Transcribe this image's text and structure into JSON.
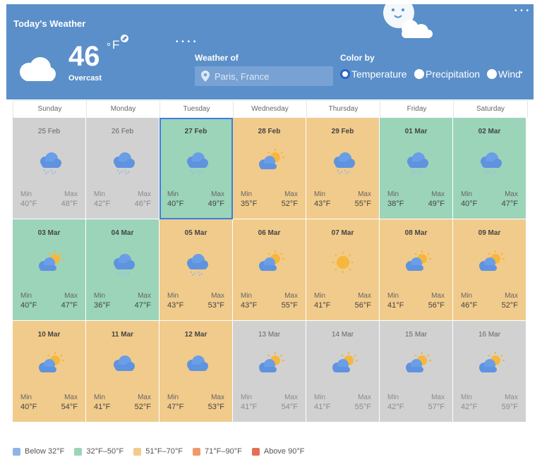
{
  "header": {
    "title": "Today's Weather",
    "temperature": "46",
    "degree": "°",
    "unit": "F",
    "condition": "Overcast",
    "weather_of_label": "Weather of",
    "location_value": "Paris, France",
    "color_by_label": "Color by",
    "color_by_options": [
      "Temperature",
      "Precipitation",
      "Wind"
    ],
    "color_by_selected": "Temperature"
  },
  "days": [
    "Sunday",
    "Monday",
    "Tuesday",
    "Wednesday",
    "Thursday",
    "Friday",
    "Saturday"
  ],
  "labels": {
    "min": "Min",
    "max": "Max"
  },
  "weeks": [
    [
      {
        "date": "25 Feb",
        "min": "40°F",
        "max": "48°F",
        "color": "gray",
        "icon": "cloud-rain-icon"
      },
      {
        "date": "26 Feb",
        "min": "42°F",
        "max": "46°F",
        "color": "gray",
        "icon": "cloud-rain-icon"
      },
      {
        "date": "27 Feb",
        "min": "40°F",
        "max": "49°F",
        "color": "green",
        "icon": "cloud-rain-icon",
        "selected": true
      },
      {
        "date": "28 Feb",
        "min": "35°F",
        "max": "52°F",
        "color": "yellow",
        "icon": "partly-cloudy-icon"
      },
      {
        "date": "29 Feb",
        "min": "43°F",
        "max": "55°F",
        "color": "yellow",
        "icon": "cloud-rain-icon"
      },
      {
        "date": "01 Mar",
        "min": "38°F",
        "max": "49°F",
        "color": "green",
        "icon": "cloud-rain-icon"
      },
      {
        "date": "02 Mar",
        "min": "40°F",
        "max": "47°F",
        "color": "green",
        "icon": "cloud-rain-icon"
      }
    ],
    [
      {
        "date": "03 Mar",
        "min": "40°F",
        "max": "47°F",
        "color": "green",
        "icon": "partly-cloudy-icon"
      },
      {
        "date": "04 Mar",
        "min": "36°F",
        "max": "47°F",
        "color": "green",
        "icon": "cloud-rain-icon"
      },
      {
        "date": "05 Mar",
        "min": "43°F",
        "max": "53°F",
        "color": "yellow",
        "icon": "cloud-rain-icon"
      },
      {
        "date": "06 Mar",
        "min": "43°F",
        "max": "55°F",
        "color": "yellow",
        "icon": "partly-cloudy-icon"
      },
      {
        "date": "07 Mar",
        "min": "41°F",
        "max": "56°F",
        "color": "yellow",
        "icon": "sun-icon"
      },
      {
        "date": "08 Mar",
        "min": "41°F",
        "max": "56°F",
        "color": "yellow",
        "icon": "partly-cloudy-icon"
      },
      {
        "date": "09 Mar",
        "min": "46°F",
        "max": "52°F",
        "color": "yellow",
        "icon": "partly-cloudy-icon"
      }
    ],
    [
      {
        "date": "10 Mar",
        "min": "40°F",
        "max": "54°F",
        "color": "yellow",
        "icon": "partly-cloudy-icon"
      },
      {
        "date": "11 Mar",
        "min": "41°F",
        "max": "52°F",
        "color": "yellow",
        "icon": "cloud-icon"
      },
      {
        "date": "12 Mar",
        "min": "47°F",
        "max": "53°F",
        "color": "yellow",
        "icon": "cloud-icon"
      },
      {
        "date": "13 Mar",
        "min": "41°F",
        "max": "54°F",
        "color": "gray",
        "icon": "partly-cloudy-icon"
      },
      {
        "date": "14 Mar",
        "min": "41°F",
        "max": "55°F",
        "color": "gray",
        "icon": "partly-cloudy-icon"
      },
      {
        "date": "15 Mar",
        "min": "42°F",
        "max": "57°F",
        "color": "gray",
        "icon": "partly-cloudy-icon"
      },
      {
        "date": "16 Mar",
        "min": "42°F",
        "max": "59°F",
        "color": "gray",
        "icon": "partly-cloudy-icon"
      }
    ]
  ],
  "legend": [
    {
      "label": "Below 32°F",
      "color": "#8fb3e8"
    },
    {
      "label": "32°F–50°F",
      "color": "#9bd4b9"
    },
    {
      "label": "51°F–70°F",
      "color": "#f1cb8b"
    },
    {
      "label": "71°F–90°F",
      "color": "#ef9a6a"
    },
    {
      "label": "Above 90°F",
      "color": "#e56f56"
    }
  ],
  "colors": {
    "header_bg": "#5b8fc9",
    "green": "#9bd4b9",
    "yellow": "#f1cb8b",
    "gray": "#d1d1d1",
    "selected_border": "#3f7ee0"
  }
}
